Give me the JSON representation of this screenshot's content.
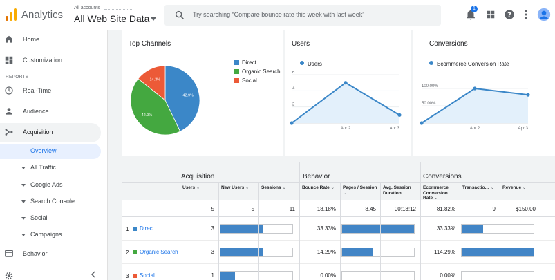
{
  "header": {
    "app_title": "Analytics",
    "account_label": "All accounts",
    "property_name": "All Web Site Data",
    "search_placeholder": "Try searching “Compare bounce rate this week with last week”",
    "notification_count": "1",
    "logo_colors": [
      "#f9ab00",
      "#e37400",
      "#e8710a"
    ]
  },
  "sidebar": {
    "top_items": [
      {
        "label": "Home",
        "icon": "home-icon"
      },
      {
        "label": "Customization",
        "icon": "dashboard-icon"
      }
    ],
    "section_label": "REPORTS",
    "report_items": [
      {
        "label": "Real-Time",
        "icon": "clock-icon"
      },
      {
        "label": "Audience",
        "icon": "person-icon"
      },
      {
        "label": "Acquisition",
        "icon": "acquisition-icon"
      }
    ],
    "acquisition_children": [
      {
        "label": "Overview"
      },
      {
        "label": "All Traffic"
      },
      {
        "label": "Google Ads"
      },
      {
        "label": "Search Console"
      },
      {
        "label": "Social"
      },
      {
        "label": "Campaigns"
      }
    ],
    "behavior_label": "Behavior"
  },
  "cards": {
    "top_channels": {
      "title": "Top Channels",
      "legend": [
        "Direct",
        "Organic Search",
        "Social"
      ],
      "colors": [
        "#3b87c8",
        "#44a840",
        "#ec5a37"
      ]
    },
    "users": {
      "title": "Users",
      "legend": "Users"
    },
    "conversions": {
      "title": "Conversions",
      "legend": "Ecommerce Conversion Rate"
    }
  },
  "chart_data": [
    {
      "type": "pie",
      "categories": [
        "Direct",
        "Organic Search",
        "Social"
      ],
      "values": [
        42.9,
        42.9,
        14.3
      ],
      "labels": [
        "42.9%",
        "42.9%",
        "14.3%"
      ]
    },
    {
      "type": "area",
      "x": [
        "…",
        "Apr 2",
        "Apr 3"
      ],
      "series": [
        {
          "name": "Users",
          "values": [
            0,
            5,
            1
          ]
        }
      ],
      "y_ticks": [
        "6",
        "4",
        "2"
      ],
      "ylim": [
        0,
        6
      ]
    },
    {
      "type": "area",
      "x": [
        "…",
        "Apr 2",
        "Apr 3"
      ],
      "series": [
        {
          "name": "Ecommerce Conversion Rate",
          "values": [
            0,
            100,
            81.82
          ]
        }
      ],
      "y_ticks": [
        "100.00%",
        "50.00%"
      ],
      "ylim": [
        0,
        120
      ]
    }
  ],
  "table": {
    "groups": [
      "Acquisition",
      "Behavior",
      "Conversions"
    ],
    "columns": [
      {
        "label": "Users",
        "sort": "⌄"
      },
      {
        "label": "New Users",
        "sort": "⌄"
      },
      {
        "label": "Sessions",
        "sort": "⌄"
      },
      {
        "label": "Bounce Rate",
        "sort": "⌄"
      },
      {
        "label": "Pages / Session",
        "sort": "⌄"
      },
      {
        "label": "Avg. Session Duration",
        "sort": ""
      },
      {
        "label": "Ecommerce Conversion Rate",
        "sort": "⌄"
      },
      {
        "label": "Transactio…",
        "sort": "⌄"
      },
      {
        "label": "Revenue",
        "sort": "⌄"
      }
    ],
    "totals": [
      "5",
      "5",
      "11",
      "18.18%",
      "8.45",
      "00:13:12",
      "81.82%",
      "9",
      "$150.00"
    ],
    "rows": [
      {
        "num": "1",
        "name": "Direct",
        "color": "#3b87c8",
        "users": "3",
        "new_users_share": 0.6,
        "bounce_rate": "33.33%",
        "pages_share": 1.0,
        "conv_rate": "33.33%",
        "transactions_share": 0.3
      },
      {
        "num": "2",
        "name": "Organic Search",
        "color": "#44a840",
        "users": "3",
        "new_users_share": 0.6,
        "bounce_rate": "14.29%",
        "pages_share": 0.43,
        "conv_rate": "114.29%",
        "transactions_share": 1.0
      },
      {
        "num": "3",
        "name": "Social",
        "color": "#ec5a37",
        "users": "1",
        "new_users_share": 0.2,
        "bounce_rate": "0.00%",
        "pages_share": 0,
        "conv_rate": "0.00%",
        "transactions_share": 0
      }
    ]
  }
}
